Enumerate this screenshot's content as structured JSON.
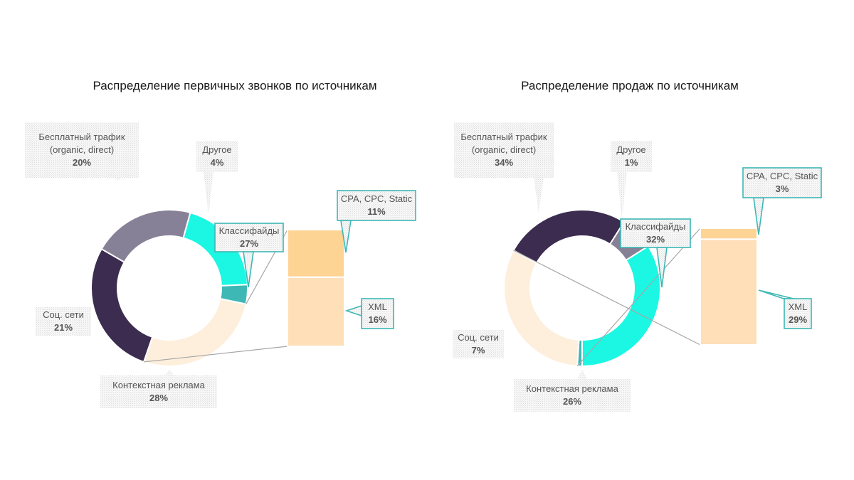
{
  "chart_data": [
    {
      "type": "pie",
      "subtype": "doughnut-with-stacked-bar",
      "title": "Распределение первичных звонков по источникам",
      "slices": [
        {
          "label": "Бесплатный трафик (organic, direct)",
          "label_lines": [
            "Бесплатный трафик",
            "(organic, direct)"
          ],
          "pct_label": "20%",
          "value": 20,
          "color": "#1BF7E3"
        },
        {
          "label": "Другое",
          "label_lines": [
            "Другое"
          ],
          "pct_label": "4%",
          "value": 4,
          "color": "#3DB8B5"
        },
        {
          "label": "Классифайды",
          "label_lines": [
            "Классифайды"
          ],
          "pct_label": "27%",
          "value": 27,
          "color": "#FDEFDC"
        },
        {
          "label": "Контекстная реклама",
          "label_lines": [
            "Контекстная реклама"
          ],
          "pct_label": "28%",
          "value": 28,
          "color": "#3B2C50"
        },
        {
          "label": "Соц. сети",
          "label_lines": [
            "Соц. сети"
          ],
          "pct_label": "21%",
          "value": 21,
          "color": "#868196"
        }
      ],
      "breakdown_of": "Классифайды",
      "breakdown": [
        {
          "label": "CPA, CPC, Static",
          "pct_label": "11%",
          "value": 11,
          "color": "#FED495"
        },
        {
          "label": "XML",
          "pct_label": "16%",
          "value": 16,
          "color": "#FEDFB8"
        }
      ]
    },
    {
      "type": "pie",
      "subtype": "doughnut-with-stacked-bar",
      "title": "Распределение продаж по источникам",
      "slices": [
        {
          "label": "Бесплатный трафик (organic, direct)",
          "label_lines": [
            "Бесплатный трафик",
            "(organic, direct)"
          ],
          "pct_label": "34%",
          "value": 34,
          "color": "#1BF7E3"
        },
        {
          "label": "Другое",
          "label_lines": [
            "Другое"
          ],
          "pct_label": "1%",
          "value": 1,
          "color": "#3DB8B5"
        },
        {
          "label": "Классифайды",
          "label_lines": [
            "Классифайды"
          ],
          "pct_label": "32%",
          "value": 32,
          "color": "#FDEFDC"
        },
        {
          "label": "Контекстная реклама",
          "label_lines": [
            "Контекстная реклама"
          ],
          "pct_label": "26%",
          "value": 26,
          "color": "#3B2C50"
        },
        {
          "label": "Соц. сети",
          "label_lines": [
            "Соц. сети"
          ],
          "pct_label": "7%",
          "value": 7,
          "color": "#868196"
        }
      ],
      "breakdown_of": "Классифайды",
      "breakdown": [
        {
          "label": "CPA, CPC, Static",
          "pct_label": "3%",
          "value": 3,
          "color": "#FED495"
        },
        {
          "label": "XML",
          "pct_label": "29%",
          "value": 29,
          "color": "#FEDFB8"
        }
      ]
    }
  ],
  "colors": {
    "callout_border_highlight": "#3DB8B5",
    "callout_fill_hatch": "#E6E6E6",
    "connector_line": "#A6A6A6"
  }
}
